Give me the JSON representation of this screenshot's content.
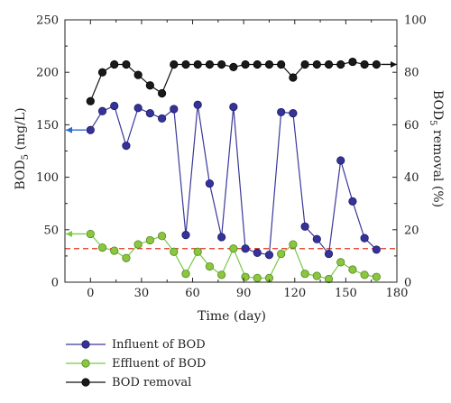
{
  "chart_data": {
    "type": "line",
    "xlabel": "Time (day)",
    "ylabel_left": "BOD5 (mg/L)",
    "ylabel_right": "BOD5 removal (%)",
    "xlim": [
      -15,
      180
    ],
    "ylim_left": [
      0,
      250
    ],
    "ylim_right": [
      0,
      100
    ],
    "x_ticks": [
      "0",
      "30",
      "60",
      "90",
      "120",
      "150",
      "180"
    ],
    "y_ticks_left": [
      "0",
      "50",
      "100",
      "150",
      "200",
      "250"
    ],
    "y_ticks_right": [
      "0",
      "20",
      "40",
      "60",
      "80",
      "100"
    ],
    "reference_line": {
      "axis": "left",
      "y": 32,
      "color": "#e2341d",
      "style": "dashed"
    },
    "legend_position": "bottom",
    "series": [
      {
        "name": "Influent of BOD",
        "axis": "left",
        "color": "#3a3899",
        "marker_fill": "#35329a",
        "x": [
          0,
          7,
          14,
          21,
          28,
          35,
          42,
          49,
          56,
          63,
          70,
          77,
          84,
          91,
          98,
          105,
          112,
          119,
          126,
          133,
          140,
          147,
          154,
          161,
          168
        ],
        "y": [
          145,
          163,
          168,
          130,
          166,
          161,
          156,
          165,
          45,
          169,
          94,
          43,
          167,
          32,
          28,
          26,
          162,
          161,
          53,
          41,
          27,
          116,
          77,
          42,
          31
        ]
      },
      {
        "name": "Effluent of BOD",
        "axis": "left",
        "color": "#7ac943",
        "marker_fill": "#8cc63f",
        "x": [
          0,
          7,
          14,
          21,
          28,
          35,
          42,
          49,
          56,
          63,
          70,
          77,
          84,
          91,
          98,
          105,
          112,
          119,
          126,
          133,
          140,
          147,
          154,
          161,
          168
        ],
        "y": [
          46,
          33,
          30,
          23,
          36,
          40,
          44,
          29,
          8,
          29,
          15,
          7,
          32,
          5,
          4,
          4,
          27,
          36,
          8,
          6,
          3,
          19,
          12,
          7,
          5
        ]
      },
      {
        "name": "BOD removal",
        "axis": "right",
        "color": "#111111",
        "marker_fill": "#1a1a1a",
        "x": [
          0,
          7,
          14,
          21,
          28,
          35,
          42,
          49,
          56,
          63,
          70,
          77,
          84,
          91,
          98,
          105,
          112,
          119,
          126,
          133,
          140,
          147,
          154,
          161,
          168
        ],
        "y": [
          69,
          80,
          83,
          83,
          79,
          75,
          72,
          83,
          83,
          83,
          83,
          83,
          82,
          83,
          83,
          83,
          83,
          78,
          83,
          83,
          83,
          83,
          84,
          83,
          83
        ]
      }
    ],
    "arrows": [
      {
        "series": "BOD removal",
        "direction": "right"
      },
      {
        "series": "Influent of BOD",
        "direction": "left"
      },
      {
        "series": "Effluent of BOD",
        "direction": "left"
      }
    ]
  }
}
